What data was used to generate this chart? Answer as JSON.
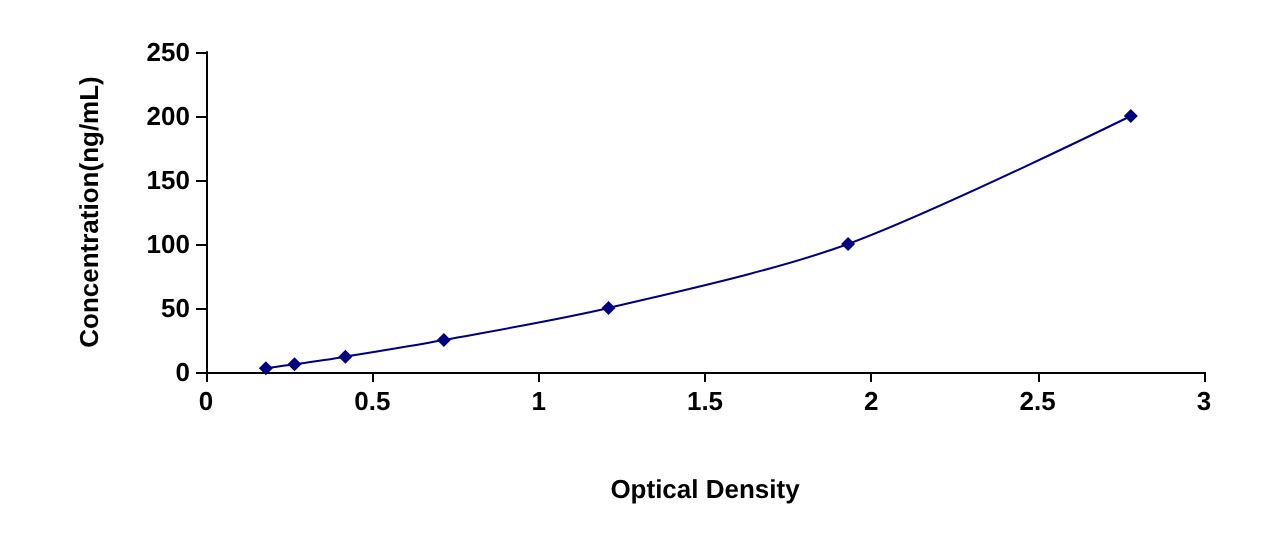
{
  "chart_data": {
    "type": "line",
    "xlabel": "Optical Density",
    "ylabel": "Concentration(ng/mL)",
    "x": [
      0.18,
      0.266,
      0.419,
      0.715,
      1.21,
      1.93,
      2.78
    ],
    "series": [
      {
        "color": "#000080",
        "values": [
          3,
          6,
          12,
          25,
          50,
          100,
          200
        ]
      }
    ],
    "xlim": [
      0,
      3
    ],
    "xticks": [
      0,
      0.5,
      1,
      1.5,
      2,
      2.5,
      3
    ],
    "ylim": [
      0,
      250
    ],
    "yticks": [
      0,
      50,
      100,
      150,
      200,
      250
    ],
    "grid": false,
    "marker": "diamond",
    "line_style": "solid"
  }
}
